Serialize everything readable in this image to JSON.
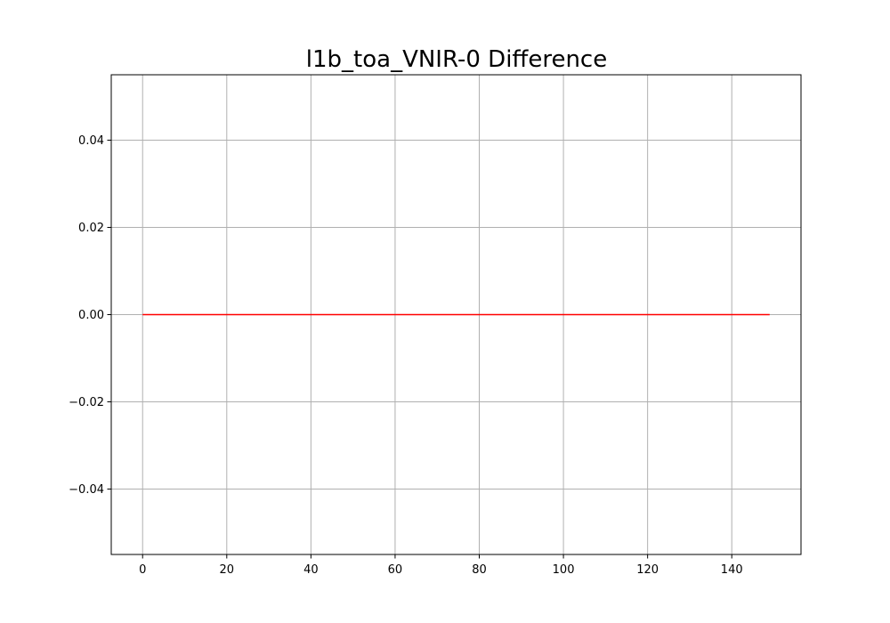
{
  "chart_data": {
    "type": "line",
    "title": "l1b_toa_VNIR-0 Difference",
    "xlabel": "",
    "ylabel": "",
    "xlim": [
      -7.45,
      156.45
    ],
    "ylim": [
      -0.055,
      0.055
    ],
    "xticks": [
      0,
      20,
      40,
      60,
      80,
      100,
      120,
      140
    ],
    "xtick_labels": [
      "0",
      "20",
      "40",
      "60",
      "80",
      "100",
      "120",
      "140"
    ],
    "yticks": [
      -0.04,
      -0.02,
      0.0,
      0.02,
      0.04
    ],
    "ytick_labels": [
      "−0.04",
      "−0.02",
      "0.00",
      "0.02",
      "0.04"
    ],
    "grid": true,
    "series": [
      {
        "color": "#ff0000",
        "x": [
          0,
          149
        ],
        "y": [
          0.0,
          0.0
        ]
      }
    ]
  }
}
